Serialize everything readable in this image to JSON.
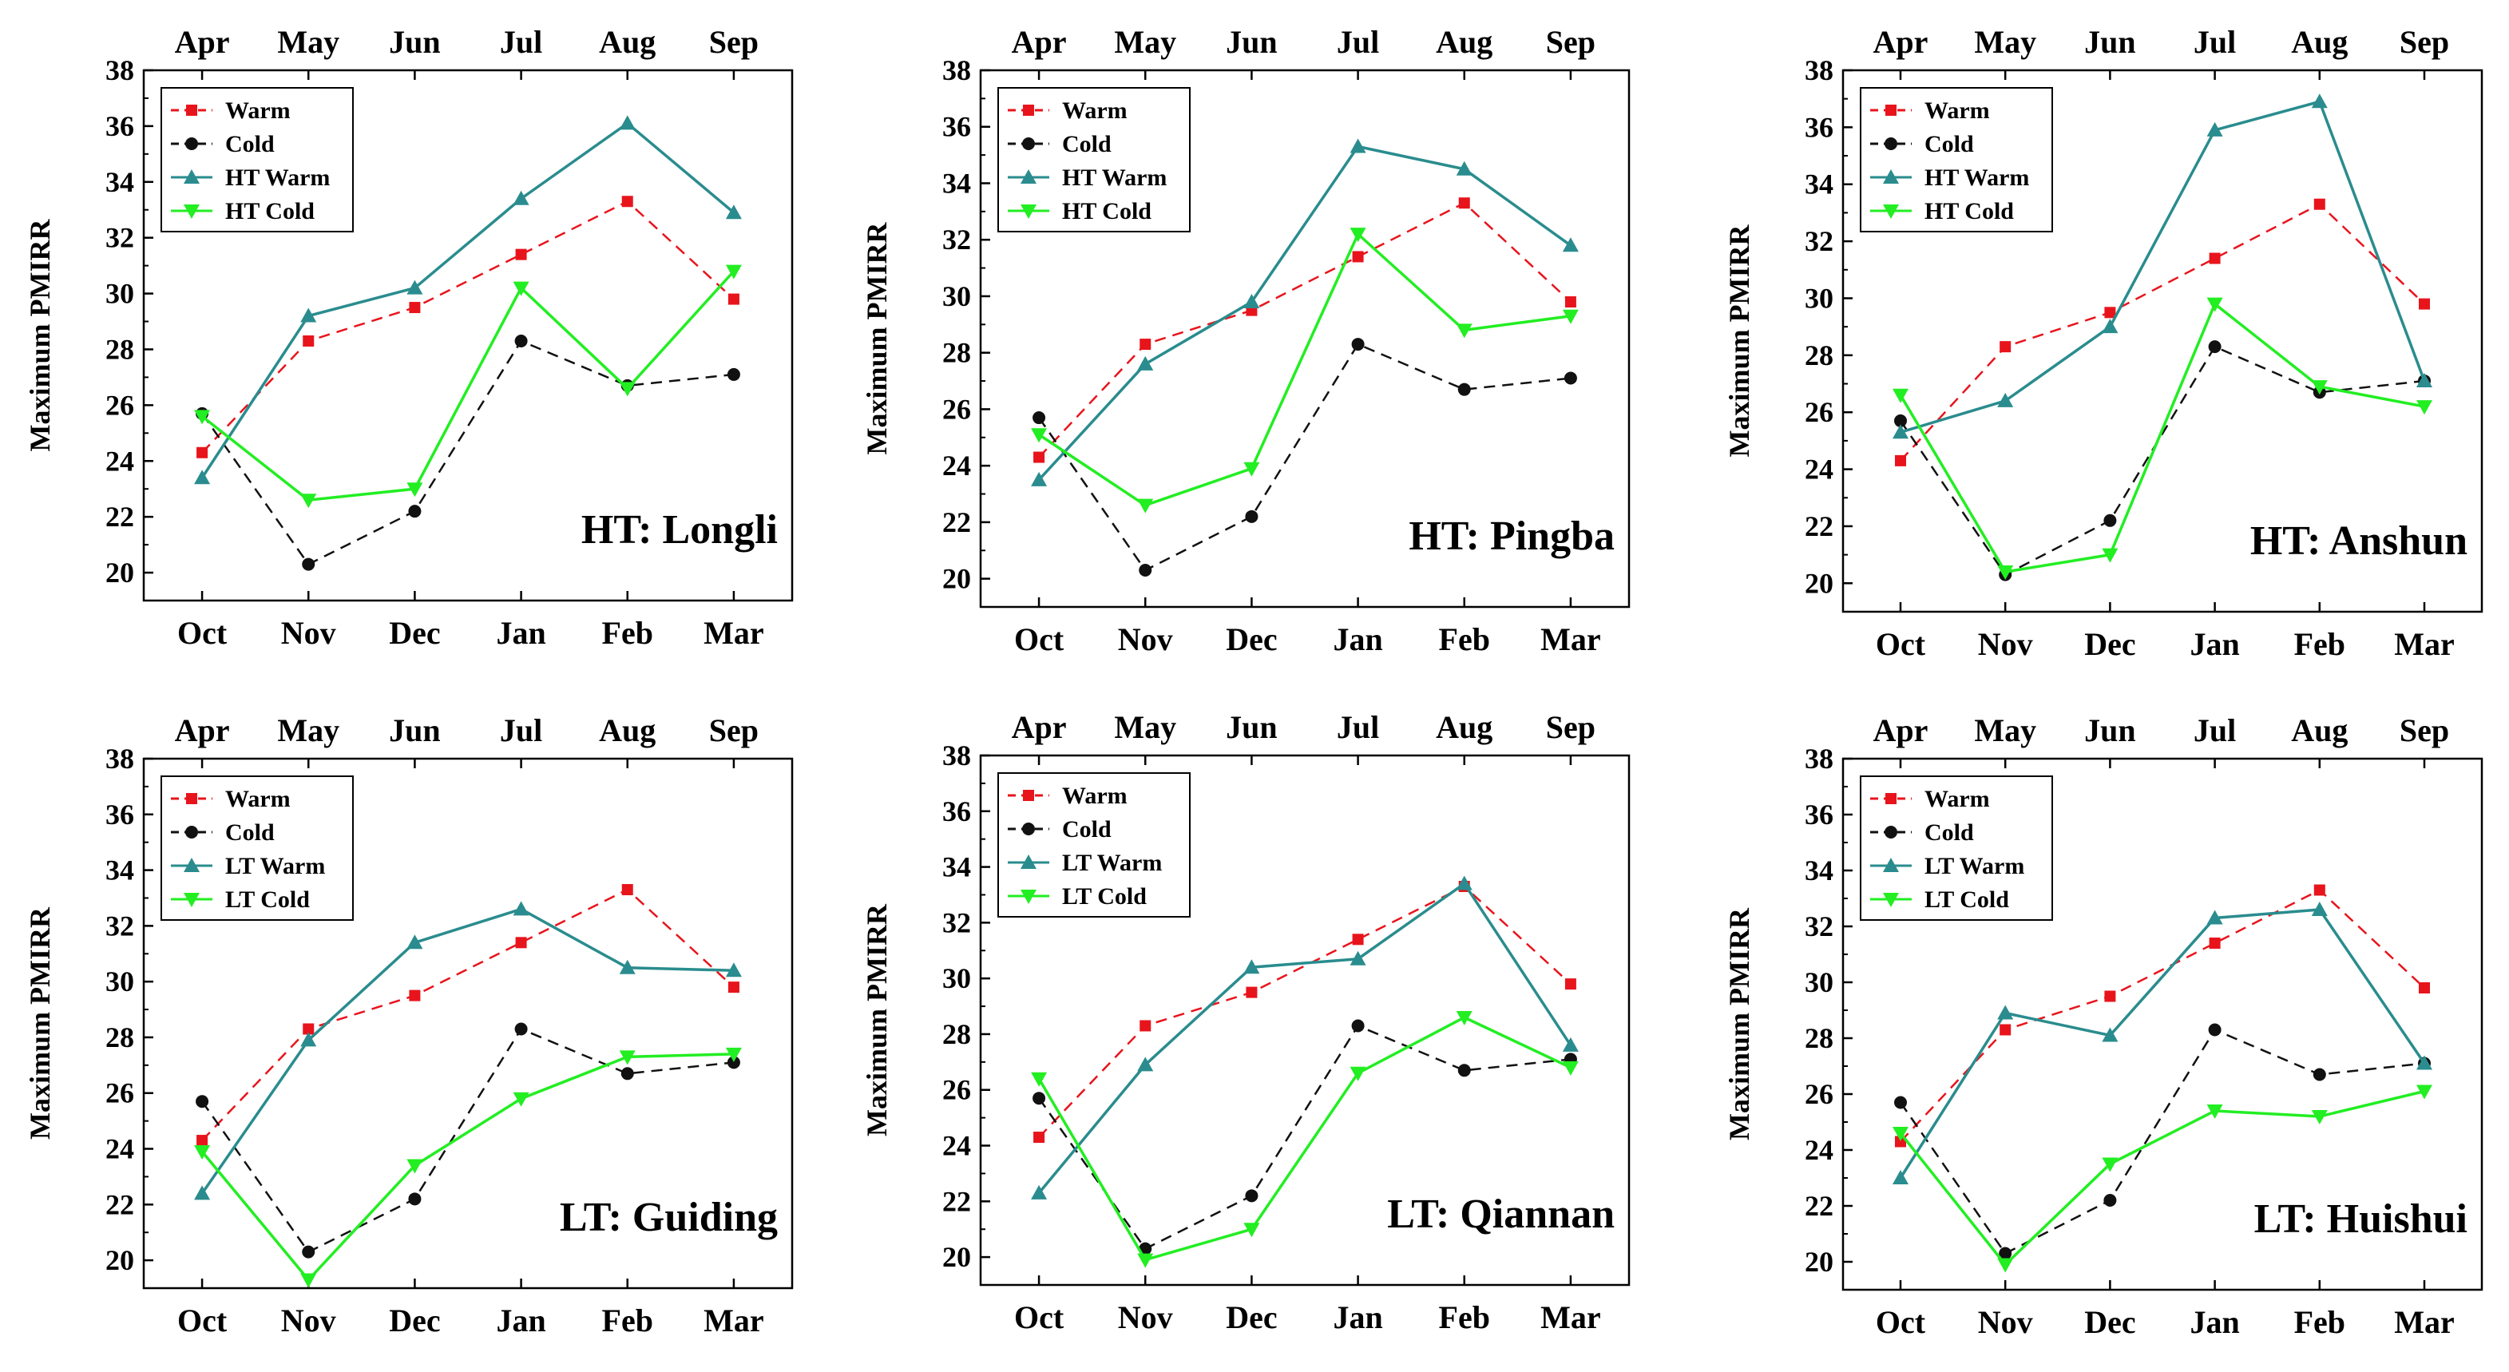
{
  "colors": {
    "warm": "#e8141c",
    "cold": "#111111",
    "ht_warm": "#2a8c8e",
    "ht_cold": "#22ee22"
  },
  "chart_data": [
    {
      "type": "line",
      "annotation": "HT: Longli",
      "ylabel": "Maximum PMIRR",
      "bottom_ticks": [
        "Oct",
        "Nov",
        "Dec",
        "Jan",
        "Feb",
        "Mar"
      ],
      "top_ticks": [
        "Apr",
        "May",
        "Jun",
        "Jul",
        "Aug",
        "Sep"
      ],
      "ylim": [
        19,
        38
      ],
      "yticks": [
        20,
        22,
        24,
        26,
        28,
        30,
        32,
        34,
        36,
        38
      ],
      "legend_position": "top-left",
      "series": [
        {
          "name": "Warm",
          "key": "warm",
          "values": [
            24.3,
            28.3,
            29.5,
            31.4,
            33.3,
            29.8
          ]
        },
        {
          "name": "Cold",
          "key": "cold",
          "values": [
            25.7,
            20.3,
            22.2,
            28.3,
            26.7,
            27.1
          ]
        },
        {
          "name": "HT Warm",
          "key": "ht_warm",
          "values": [
            23.4,
            29.2,
            30.2,
            33.4,
            36.1,
            32.9
          ]
        },
        {
          "name": "HT Cold",
          "key": "ht_cold",
          "values": [
            25.6,
            22.6,
            23.0,
            30.2,
            26.6,
            30.8
          ]
        }
      ]
    },
    {
      "type": "line",
      "annotation": "HT: Pingba",
      "ylabel": "Maximum PMIRR",
      "bottom_ticks": [
        "Oct",
        "Nov",
        "Dec",
        "Jan",
        "Feb",
        "Mar"
      ],
      "top_ticks": [
        "Apr",
        "May",
        "Jun",
        "Jul",
        "Aug",
        "Sep"
      ],
      "ylim": [
        19,
        38
      ],
      "yticks": [
        20,
        22,
        24,
        26,
        28,
        30,
        32,
        34,
        36,
        38
      ],
      "legend_position": "top-left",
      "series": [
        {
          "name": "Warm",
          "key": "warm",
          "values": [
            24.3,
            28.3,
            29.5,
            31.4,
            33.3,
            29.8
          ]
        },
        {
          "name": "Cold",
          "key": "cold",
          "values": [
            25.7,
            20.3,
            22.2,
            28.3,
            26.7,
            27.1
          ]
        },
        {
          "name": "HT Warm",
          "key": "ht_warm",
          "values": [
            23.5,
            27.6,
            29.8,
            35.3,
            34.5,
            31.8
          ]
        },
        {
          "name": "HT Cold",
          "key": "ht_cold",
          "values": [
            25.1,
            22.6,
            23.9,
            32.2,
            28.8,
            29.3
          ]
        }
      ]
    },
    {
      "type": "line",
      "annotation": "HT: Anshun",
      "ylabel": "Maximum PMIRR",
      "bottom_ticks": [
        "Oct",
        "Nov",
        "Dec",
        "Jan",
        "Feb",
        "Mar"
      ],
      "top_ticks": [
        "Apr",
        "May",
        "Jun",
        "Jul",
        "Aug",
        "Sep"
      ],
      "ylim": [
        19,
        38
      ],
      "yticks": [
        20,
        22,
        24,
        26,
        28,
        30,
        32,
        34,
        36,
        38
      ],
      "legend_position": "top-left",
      "series": [
        {
          "name": "Warm",
          "key": "warm",
          "values": [
            24.3,
            28.3,
            29.5,
            31.4,
            33.3,
            29.8
          ]
        },
        {
          "name": "Cold",
          "key": "cold",
          "values": [
            25.7,
            20.3,
            22.2,
            28.3,
            26.7,
            27.1
          ]
        },
        {
          "name": "HT Warm",
          "key": "ht_warm",
          "values": [
            25.3,
            26.4,
            29.0,
            35.9,
            36.9,
            27.1
          ]
        },
        {
          "name": "HT Cold",
          "key": "ht_cold",
          "values": [
            26.6,
            20.4,
            21.0,
            29.8,
            26.9,
            26.2
          ]
        }
      ]
    },
    {
      "type": "line",
      "annotation": "LT: Guiding",
      "ylabel": "Maximum PMIRR",
      "bottom_ticks": [
        "Oct",
        "Nov",
        "Dec",
        "Jan",
        "Feb",
        "Mar"
      ],
      "top_ticks": [
        "Apr",
        "May",
        "Jun",
        "Jul",
        "Aug",
        "Sep"
      ],
      "ylim": [
        19,
        38
      ],
      "yticks": [
        20,
        22,
        24,
        26,
        28,
        30,
        32,
        34,
        36,
        38
      ],
      "legend_position": "top-left",
      "series": [
        {
          "name": "Warm",
          "key": "warm",
          "values": [
            24.3,
            28.3,
            29.5,
            31.4,
            33.3,
            29.8
          ]
        },
        {
          "name": "Cold",
          "key": "cold",
          "values": [
            25.7,
            20.3,
            22.2,
            28.3,
            26.7,
            27.1
          ]
        },
        {
          "name": "LT Warm",
          "key": "ht_warm",
          "values": [
            22.4,
            27.9,
            31.4,
            32.6,
            30.5,
            30.4
          ]
        },
        {
          "name": "LT Cold",
          "key": "ht_cold",
          "values": [
            23.9,
            19.3,
            23.4,
            25.8,
            27.3,
            27.4
          ]
        }
      ]
    },
    {
      "type": "line",
      "annotation": "LT: Qiannan",
      "ylabel": "Maximum PMIRR",
      "bottom_ticks": [
        "Oct",
        "Nov",
        "Dec",
        "Jan",
        "Feb",
        "Mar"
      ],
      "top_ticks": [
        "Apr",
        "May",
        "Jun",
        "Jul",
        "Aug",
        "Sep"
      ],
      "ylim": [
        19,
        38
      ],
      "yticks": [
        20,
        22,
        24,
        26,
        28,
        30,
        32,
        34,
        36,
        38
      ],
      "legend_position": "top-left",
      "series": [
        {
          "name": "Warm",
          "key": "warm",
          "values": [
            24.3,
            28.3,
            29.5,
            31.4,
            33.3,
            29.8
          ]
        },
        {
          "name": "Cold",
          "key": "cold",
          "values": [
            25.7,
            20.3,
            22.2,
            28.3,
            26.7,
            27.1
          ]
        },
        {
          "name": "LT Warm",
          "key": "ht_warm",
          "values": [
            22.3,
            26.9,
            30.4,
            30.7,
            33.4,
            27.6
          ]
        },
        {
          "name": "LT Cold",
          "key": "ht_cold",
          "values": [
            26.4,
            19.9,
            21.0,
            26.6,
            28.6,
            26.8
          ]
        }
      ]
    },
    {
      "type": "line",
      "annotation": "LT: Huishui",
      "ylabel": "Maximum PMIRR",
      "bottom_ticks": [
        "Oct",
        "Nov",
        "Dec",
        "Jan",
        "Feb",
        "Mar"
      ],
      "top_ticks": [
        "Apr",
        "May",
        "Jun",
        "Jul",
        "Aug",
        "Sep"
      ],
      "ylim": [
        19,
        38
      ],
      "yticks": [
        20,
        22,
        24,
        26,
        28,
        30,
        32,
        34,
        36,
        38
      ],
      "legend_position": "top-left",
      "series": [
        {
          "name": "Warm",
          "key": "warm",
          "values": [
            24.3,
            28.3,
            29.5,
            31.4,
            33.3,
            29.8
          ]
        },
        {
          "name": "Cold",
          "key": "cold",
          "values": [
            25.7,
            20.3,
            22.2,
            28.3,
            26.7,
            27.1
          ]
        },
        {
          "name": "LT Warm",
          "key": "ht_warm",
          "values": [
            23.0,
            28.9,
            28.1,
            32.3,
            32.6,
            27.1
          ]
        },
        {
          "name": "LT Cold",
          "key": "ht_cold",
          "values": [
            24.6,
            19.9,
            23.5,
            25.4,
            25.2,
            26.1
          ]
        }
      ]
    }
  ]
}
